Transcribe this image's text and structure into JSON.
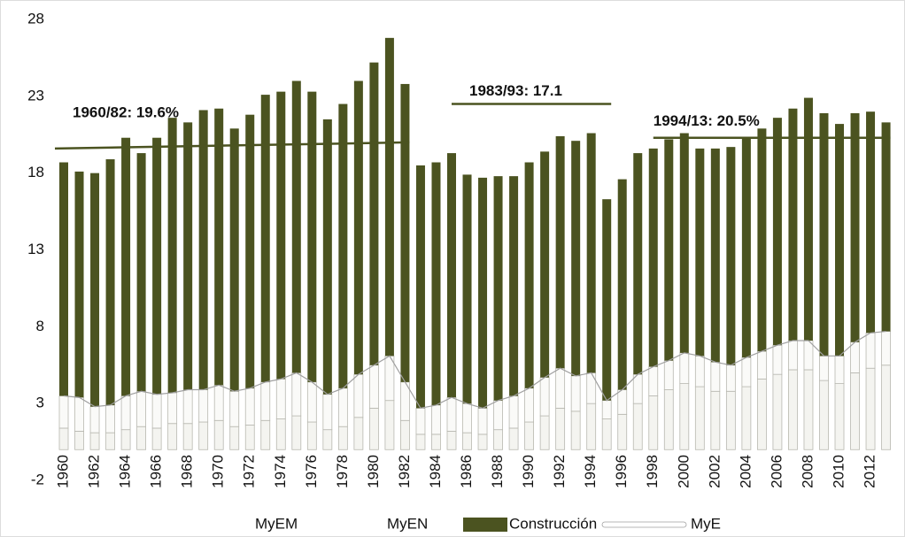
{
  "chart_data": {
    "type": "stacked-bar",
    "categories": [
      "1960",
      null,
      "1962",
      null,
      "1964",
      null,
      "1966",
      null,
      "1968",
      null,
      "1970",
      null,
      "1972",
      null,
      "1974",
      null,
      "1976",
      null,
      "1978",
      null,
      "1980",
      null,
      "1982",
      null,
      "1984",
      null,
      "1986",
      null,
      "1988",
      null,
      "1990",
      null,
      "1992",
      null,
      "1994",
      null,
      "1996",
      null,
      "1998",
      null,
      "2000",
      null,
      "2002",
      null,
      "2004",
      null,
      "2006",
      null,
      "2008",
      null,
      "2010",
      null,
      "2012",
      null
    ],
    "series": [
      {
        "name": "MyEM",
        "color": "#f4f4f0",
        "values": [
          1.4,
          1.2,
          1.1,
          1.1,
          1.3,
          1.5,
          1.4,
          1.7,
          1.7,
          1.8,
          1.9,
          1.5,
          1.6,
          1.9,
          2.0,
          2.2,
          1.8,
          1.3,
          1.5,
          2.1,
          2.7,
          3.2,
          1.9,
          1.0,
          1.0,
          1.2,
          1.1,
          1.0,
          1.3,
          1.4,
          1.8,
          2.2,
          2.7,
          2.5,
          3.0,
          2.0,
          2.3,
          3.0,
          3.5,
          3.9,
          4.3,
          4.1,
          3.8,
          3.8,
          4.1,
          4.6,
          4.9,
          5.2,
          5.2,
          4.5,
          4.3,
          5.0,
          5.3,
          5.5
        ]
      },
      {
        "name": "MyEN",
        "color": "#fafaf8",
        "values": [
          2.1,
          2.2,
          1.7,
          1.8,
          2.2,
          2.3,
          2.2,
          2.0,
          2.2,
          2.1,
          2.3,
          2.3,
          2.4,
          2.5,
          2.6,
          2.8,
          2.6,
          2.3,
          2.5,
          2.8,
          2.8,
          2.9,
          2.5,
          1.7,
          1.9,
          2.2,
          1.9,
          1.7,
          1.9,
          2.1,
          2.2,
          2.5,
          2.6,
          2.3,
          2.0,
          1.2,
          1.6,
          1.9,
          1.9,
          1.9,
          2.0,
          2.0,
          1.9,
          1.7,
          1.9,
          1.8,
          1.9,
          1.9,
          1.9,
          1.6,
          1.8,
          2.0,
          2.3,
          2.2
        ]
      },
      {
        "name": "Construcción",
        "color": "#4b5320",
        "values": [
          15.2,
          14.7,
          15.2,
          16.0,
          16.8,
          15.5,
          16.7,
          17.9,
          17.4,
          18.2,
          18.0,
          17.1,
          17.8,
          18.7,
          18.7,
          19.0,
          18.9,
          17.9,
          18.5,
          19.1,
          19.7,
          20.7,
          19.4,
          15.8,
          15.8,
          15.9,
          14.9,
          15.0,
          14.6,
          14.3,
          14.7,
          14.7,
          15.1,
          15.3,
          15.6,
          13.1,
          13.7,
          14.4,
          14.2,
          14.4,
          14.3,
          13.5,
          13.9,
          14.2,
          14.3,
          14.5,
          14.8,
          15.1,
          15.8,
          15.8,
          15.1,
          14.9,
          14.4,
          13.6
        ]
      },
      {
        "name": "MyE",
        "type": "line",
        "color": "#a0a0a0",
        "values": [
          3.5,
          3.4,
          2.8,
          2.9,
          3.5,
          3.8,
          3.6,
          3.7,
          3.9,
          3.9,
          4.2,
          3.8,
          4.0,
          4.4,
          4.6,
          5.0,
          4.4,
          3.6,
          4.0,
          4.9,
          5.5,
          6.1,
          4.4,
          2.7,
          2.9,
          3.4,
          3.0,
          2.7,
          3.2,
          3.5,
          4.0,
          4.7,
          5.3,
          4.8,
          5.0,
          3.2,
          3.9,
          4.9,
          5.4,
          5.8,
          6.3,
          6.1,
          5.7,
          5.5,
          6.0,
          6.4,
          6.8,
          7.1,
          7.1,
          6.1,
          6.1,
          7.0,
          7.6,
          7.7
        ]
      }
    ],
    "ylim": [
      -2,
      28
    ],
    "yticks": [
      -2,
      3,
      8,
      13,
      18,
      23,
      28
    ],
    "annotations": [
      {
        "text": "1960/82: 19.6%",
        "x": [
          1960,
          1982
        ],
        "y": [
          19.6,
          20.0
        ],
        "color": "#4b5320"
      },
      {
        "text": "1983/93: 17.1",
        "x": [
          1985,
          1995
        ],
        "y": [
          22.5,
          22.5
        ],
        "color": "#4b5320"
      },
      {
        "text": "1994/13: 20.5%",
        "x": [
          1998,
          2013
        ],
        "y": [
          20.3,
          20.3
        ],
        "color": "#4b5320"
      }
    ],
    "legend": "bottom"
  }
}
